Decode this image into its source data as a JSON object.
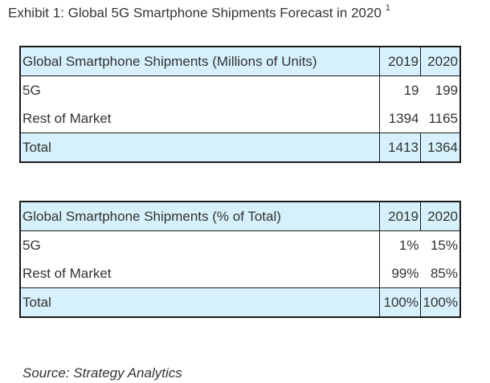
{
  "title": "Exhibit 1: Global 5G Smartphone Shipments Forecast in 2020",
  "footnote_marker": "1",
  "chart_data": [
    {
      "type": "table",
      "columns": [
        "Global Smartphone Shipments (Millions of Units)",
        "2019",
        "2020"
      ],
      "rows": [
        [
          "5G",
          "19",
          "199"
        ],
        [
          "Rest of Market",
          "1394",
          "1165"
        ],
        [
          "Total",
          "1413",
          "1364"
        ]
      ]
    },
    {
      "type": "table",
      "columns": [
        "Global Smartphone Shipments (% of Total)",
        "2019",
        "2020"
      ],
      "rows": [
        [
          "5G",
          "1%",
          "15%"
        ],
        [
          "Rest of Market",
          "99%",
          "85%"
        ],
        [
          "Total",
          "100%",
          "100%"
        ]
      ]
    }
  ],
  "source": "Source: Strategy Analytics",
  "colors": {
    "header_fill": "#d6f1fb",
    "border": "#1a1a1a",
    "text": "#333333"
  }
}
